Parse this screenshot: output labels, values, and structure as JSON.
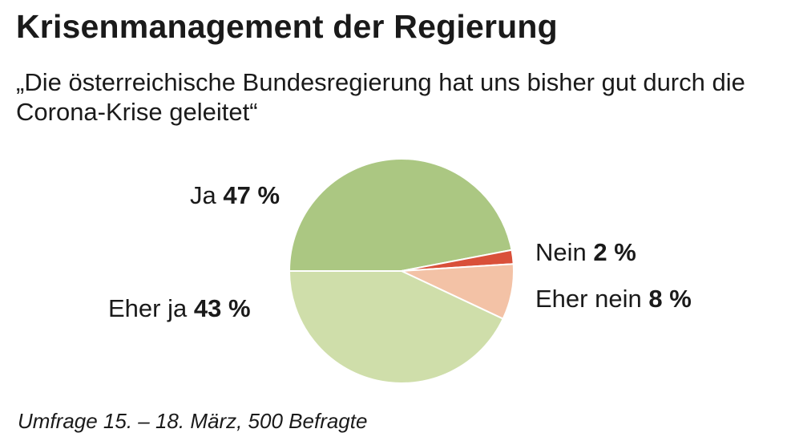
{
  "title": "Krisenmanagement der Regierung",
  "subtitle": "„Die österreichische Bundesregierung hat uns bisher gut durch die Corona-Krise geleitet“",
  "source": "Umfrage 15. – 18. März, 500 Befragte",
  "chart_data": {
    "type": "pie",
    "slices": [
      {
        "label": "Ja",
        "value": 47,
        "value_text": "47 %",
        "color": "#abc782"
      },
      {
        "label": "Nein",
        "value": 2,
        "value_text": "2 %",
        "color": "#d9503a"
      },
      {
        "label": "Eher nein",
        "value": 8,
        "value_text": "8 %",
        "color": "#f3c2a6"
      },
      {
        "label": "Eher ja",
        "value": 43,
        "value_text": "43 %",
        "color": "#cfdeaa"
      }
    ]
  }
}
